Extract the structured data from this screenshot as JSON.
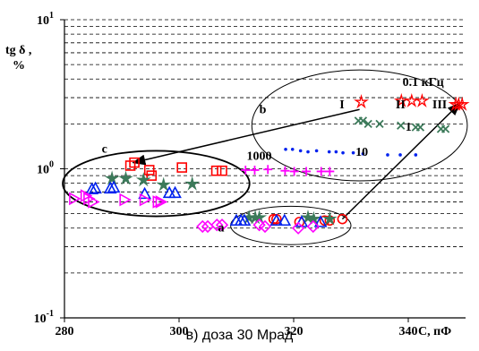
{
  "chart_data": {
    "type": "scatter",
    "title": "",
    "xlabel": "C,   пФ",
    "ylabel": "tg  δ  ,\n%",
    "xlim": [
      280,
      350
    ],
    "ylim_log": [
      0.1,
      10
    ],
    "y_scale": "log",
    "x_ticks": [
      280,
      300,
      320,
      340
    ],
    "x_tick_labels": [
      "280",
      "300",
      "320",
      "340"
    ],
    "y_ticks": [
      {
        "value": 0.1,
        "base": "10",
        "exp": "-1"
      },
      {
        "value": 1,
        "base": "10",
        "exp": "0"
      },
      {
        "value": 10,
        "base": "10",
        "exp": "1"
      }
    ],
    "grid": "horizontal dashed",
    "colors": {
      "red": "#ff0000",
      "green": "#3c7a5a",
      "blue": "#0022ee",
      "magenta": "#ff00ff"
    },
    "series": [
      {
        "marker": "red-square",
        "color": "#ff0000",
        "points": [
          [
            291.5,
            1.05
          ],
          [
            292.2,
            1.1
          ],
          [
            294.8,
            0.98
          ],
          [
            295.2,
            0.9
          ],
          [
            300.5,
            1.02
          ],
          [
            306.5,
            0.97
          ],
          [
            307.5,
            0.97
          ]
        ]
      },
      {
        "marker": "green-star",
        "color": "#3c7a5a",
        "points": [
          [
            288.3,
            0.86
          ],
          [
            290.7,
            0.86
          ],
          [
            293.8,
            0.84
          ],
          [
            297.3,
            0.78
          ],
          [
            302.3,
            0.79
          ]
        ]
      },
      {
        "marker": "blue-triangle",
        "color": "#0022ee",
        "points": [
          [
            284.8,
            0.73
          ],
          [
            285.4,
            0.74
          ],
          [
            288.0,
            0.74
          ],
          [
            288.6,
            0.75
          ],
          [
            294.0,
            0.68
          ],
          [
            298.3,
            0.69
          ],
          [
            299.3,
            0.69
          ]
        ]
      },
      {
        "marker": "magenta-triangle-right",
        "color": "#ff00ff",
        "points": [
          [
            281.7,
            0.63
          ],
          [
            283.7,
            0.66
          ],
          [
            284.2,
            0.63
          ],
          [
            285.0,
            0.6
          ],
          [
            290.5,
            0.62
          ],
          [
            294.0,
            0.62
          ],
          [
            296.3,
            0.6
          ],
          [
            296.8,
            0.6
          ]
        ]
      },
      {
        "marker": "red-circle",
        "color": "#ff0000",
        "points": [
          [
            316.5,
            0.46
          ],
          [
            317.0,
            0.46
          ],
          [
            321.0,
            0.44
          ],
          [
            325.4,
            0.45
          ],
          [
            326.3,
            0.45
          ],
          [
            328.5,
            0.46
          ]
        ]
      },
      {
        "marker": "green-star",
        "color": "#3c7a5a",
        "points": [
          [
            312.2,
            0.47
          ],
          [
            313.3,
            0.47
          ],
          [
            314.0,
            0.47
          ],
          [
            322.5,
            0.47
          ],
          [
            323.5,
            0.46
          ],
          [
            326.3,
            0.46
          ]
        ]
      },
      {
        "marker": "blue-triangle",
        "color": "#0022ee",
        "points": [
          [
            310.0,
            0.45
          ],
          [
            310.8,
            0.45
          ],
          [
            311.4,
            0.45
          ],
          [
            317.0,
            0.45
          ],
          [
            318.4,
            0.45
          ],
          [
            321.4,
            0.44
          ],
          [
            324.7,
            0.44
          ]
        ]
      },
      {
        "marker": "magenta-diamond",
        "color": "#ff00ff",
        "points": [
          [
            304.1,
            0.41
          ],
          [
            305.0,
            0.41
          ],
          [
            306.6,
            0.42
          ],
          [
            307.5,
            0.42
          ],
          [
            314.0,
            0.42
          ],
          [
            315.0,
            0.41
          ],
          [
            320.8,
            0.4
          ],
          [
            323.4,
            0.41
          ]
        ]
      },
      {
        "marker": "red-star",
        "color": "#ff0000",
        "points": [
          [
            331.8,
            2.8
          ],
          [
            338.8,
            2.85
          ],
          [
            340.6,
            2.85
          ],
          [
            342.4,
            2.85
          ],
          [
            348.3,
            2.7
          ],
          [
            348.8,
            2.7
          ],
          [
            349.4,
            2.7
          ]
        ]
      },
      {
        "marker": "green-x",
        "color": "#3c7a5a",
        "points": [
          [
            331.3,
            2.1
          ],
          [
            332.1,
            2.1
          ],
          [
            333.0,
            2.0
          ],
          [
            335.0,
            2.0
          ],
          [
            338.7,
            1.95
          ],
          [
            341.3,
            1.9
          ],
          [
            342.1,
            1.9
          ],
          [
            345.7,
            1.85
          ],
          [
            346.5,
            1.85
          ]
        ]
      },
      {
        "marker": "blue-dot",
        "color": "#0022ee",
        "points": [
          [
            318.6,
            1.35
          ],
          [
            319.8,
            1.35
          ],
          [
            321.2,
            1.32
          ],
          [
            322.5,
            1.3
          ],
          [
            324.0,
            1.32
          ],
          [
            326.2,
            1.3
          ],
          [
            327.4,
            1.3
          ],
          [
            328.6,
            1.28
          ],
          [
            330.4,
            1.28
          ],
          [
            332.1,
            1.26
          ],
          [
            336.4,
            1.24
          ],
          [
            338.6,
            1.24
          ],
          [
            341.3,
            1.24
          ]
        ]
      },
      {
        "marker": "magenta-plus",
        "color": "#ff00ff",
        "points": [
          [
            311.6,
            0.98
          ],
          [
            313.2,
            0.98
          ],
          [
            315.5,
            0.99
          ],
          [
            318.5,
            0.97
          ],
          [
            320.1,
            0.96
          ],
          [
            322.2,
            0.96
          ],
          [
            324.8,
            0.96
          ],
          [
            326.3,
            0.96
          ]
        ]
      }
    ],
    "annotations": [
      {
        "text": "a",
        "x": 306.8,
        "y": 0.38,
        "bold": true
      },
      {
        "text": "b",
        "x": 314.0,
        "y": 2.35,
        "bold": true
      },
      {
        "text": "c",
        "x": 286.5,
        "y": 1.28,
        "bold": true
      },
      {
        "text": "0.1 кГц",
        "x": 339.0,
        "y": 3.6,
        "bold": true
      },
      {
        "text": "I",
        "x": 328.0,
        "y": 2.55,
        "bold": true
      },
      {
        "text": "II",
        "x": 337.8,
        "y": 2.55,
        "bold": true
      },
      {
        "text": "III",
        "x": 344.2,
        "y": 2.55,
        "bold": true
      },
      {
        "text": "1",
        "x": 339.5,
        "y": 1.8,
        "bold": true
      },
      {
        "text": "10",
        "x": 330.8,
        "y": 1.22,
        "bold": true
      },
      {
        "text": "1000",
        "x": 311.8,
        "y": 1.15,
        "bold": true
      }
    ],
    "ellipses": [
      {
        "name": "group-a",
        "cx": 319.5,
        "cy": 0.43,
        "rx": 10.5,
        "ry_up": 0.56,
        "ry_down": 0.31
      },
      {
        "name": "group-b",
        "cx": 331.5,
        "cy": 1.95,
        "rx": 18.8,
        "ry_up": 4.6,
        "ry_down": 0.83
      },
      {
        "name": "group-c",
        "cx": 296.0,
        "cy": 0.8,
        "rx": 16.3,
        "ry_up": 1.32,
        "ry_down": 0.48
      }
    ],
    "arrows": [
      {
        "name": "arrow-a-to-b",
        "from": [
          328.5,
          0.46
        ],
        "to": [
          349.0,
          2.75
        ]
      },
      {
        "name": "arrow-b-to-c",
        "from": [
          331.5,
          2.5
        ],
        "to": [
          292.0,
          1.1
        ]
      }
    ]
  },
  "caption": "в) доза 30 Мрад"
}
